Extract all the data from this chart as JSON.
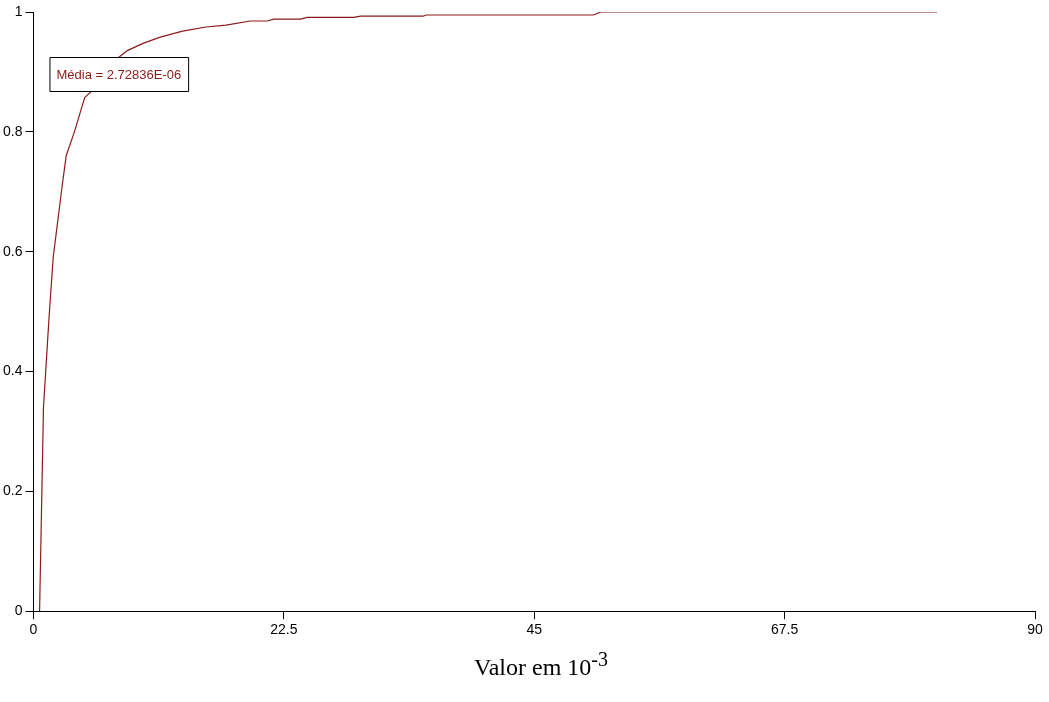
{
  "chart_data": {
    "type": "line",
    "xlabel": "Valor em 10$^{-3}$",
    "annotations": [
      "Média = 2.72836E-06"
    ],
    "x": [
      0.55,
      0.9,
      1.4,
      1.77,
      2.58,
      2.94,
      3.68,
      4.6,
      5.34,
      7.7,
      8.47,
      9.9,
      11.4,
      13.4,
      15.5,
      17.3,
      19.5,
      21,
      21.6,
      24,
      24.6,
      28.8,
      29.4,
      35,
      35.3,
      50.3,
      51,
      81.2
    ],
    "series": [
      {
        "color": "#8b1a1a",
        "values": [
          0,
          0.34,
          0.49,
          0.59,
          0.71,
          0.76,
          0.8,
          0.857,
          0.87,
          0.925,
          0.936,
          0.948,
          0.958,
          0.968,
          0.975,
          0.978,
          0.985,
          0.985,
          0.988,
          0.988,
          0.991,
          0.991,
          0.993,
          0.993,
          0.995,
          0.995,
          1,
          1
        ]
      }
    ],
    "xlim": [
      0,
      90
    ],
    "xticks": [
      0,
      22.5,
      45,
      67.5,
      90
    ],
    "ylim": [
      0,
      1
    ],
    "yticks": [
      0,
      0.2,
      0.4,
      0.6,
      0.8,
      1
    ],
    "grid": false,
    "legend": false,
    "marker": "none",
    "line_style": "solid"
  }
}
